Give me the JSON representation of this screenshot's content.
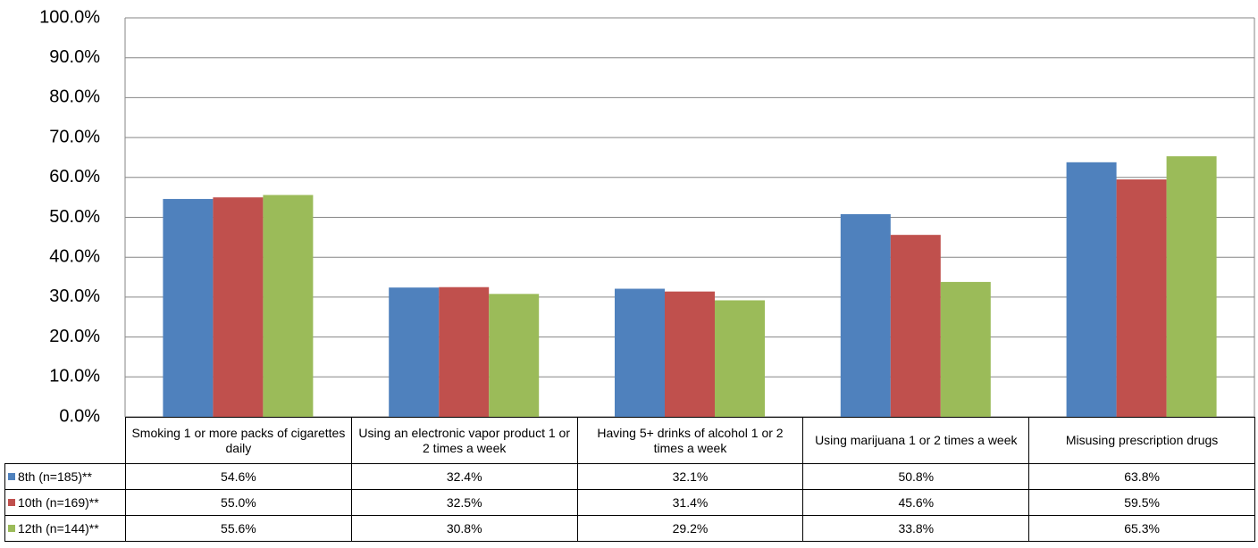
{
  "chart_data": {
    "type": "bar",
    "categories": [
      "Smoking 1 or more packs of cigarettes daily",
      "Using an electronic vapor product 1 or 2 times a week",
      "Having 5+ drinks of alcohol 1 or 2 times a week",
      "Using marijuana 1 or 2 times a week",
      "Misusing prescription drugs"
    ],
    "series": [
      {
        "name": "8th (n=185)**",
        "color": "#4f81bd",
        "values": [
          54.6,
          32.4,
          32.1,
          50.8,
          63.8
        ],
        "value_labels": [
          "54.6%",
          "32.4%",
          "32.1%",
          "50.8%",
          "63.8%"
        ]
      },
      {
        "name": "10th (n=169)**",
        "color": "#c0504d",
        "values": [
          55.0,
          32.5,
          31.4,
          45.6,
          59.5
        ],
        "value_labels": [
          "55.0%",
          "32.5%",
          "31.4%",
          "45.6%",
          "59.5%"
        ]
      },
      {
        "name": "12th (n=144)**",
        "color": "#9bbb59",
        "values": [
          55.6,
          30.8,
          29.2,
          33.8,
          65.3
        ],
        "value_labels": [
          "55.6%",
          "30.8%",
          "29.2%",
          "33.8%",
          "65.3%"
        ]
      }
    ],
    "ylim": [
      0,
      100
    ],
    "yticks": [
      {
        "value": 0,
        "label": "0.0%"
      },
      {
        "value": 10,
        "label": "10.0%"
      },
      {
        "value": 20,
        "label": "20.0%"
      },
      {
        "value": 30,
        "label": "30.0%"
      },
      {
        "value": 40,
        "label": "40.0%"
      },
      {
        "value": 50,
        "label": "50.0%"
      },
      {
        "value": 60,
        "label": "60.0%"
      },
      {
        "value": 70,
        "label": "70.0%"
      },
      {
        "value": 80,
        "label": "80.0%"
      },
      {
        "value": 90,
        "label": "90.0%"
      },
      {
        "value": 100,
        "label": "100.0%"
      }
    ],
    "grid": true
  }
}
